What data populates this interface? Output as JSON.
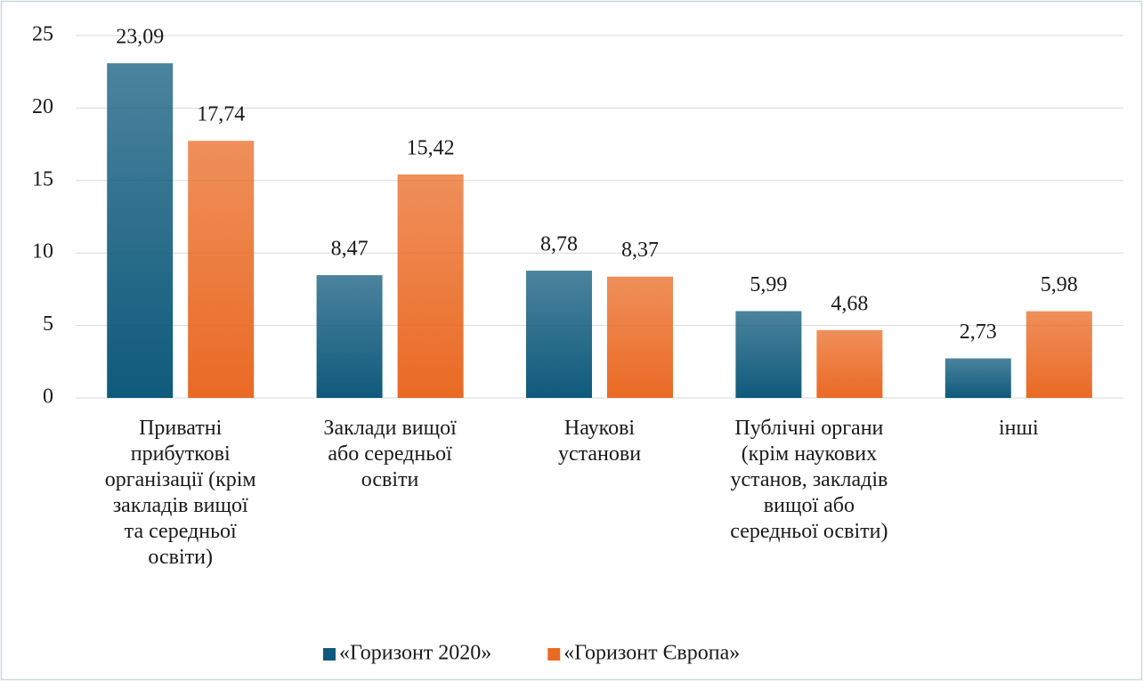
{
  "chart_data": {
    "type": "bar",
    "categories": [
      "Приватні\nприбуткові\nорганізації (крім\nзакладів вищої\nта середньої\nосвіти)",
      "Заклади вищої\nабо середньої\nосвіти",
      "Наукові\nустанови",
      "Публічні органи\n(крім наукових\nустанов, закладів\nвищої або\nсередньої освіти)",
      "інші"
    ],
    "series": [
      {
        "name": "«Горизонт 2020»",
        "color": "#0f5a7c",
        "values": [
          23.09,
          8.47,
          8.78,
          5.99,
          2.73
        ],
        "value_labels": [
          "23,09",
          "8,47",
          "8,78",
          "5,99",
          "2,73"
        ]
      },
      {
        "name": "«Горизонт Європа»",
        "color": "#ea6a24",
        "values": [
          17.74,
          15.42,
          8.37,
          4.68,
          5.98
        ],
        "value_labels": [
          "17,74",
          "15,42",
          "8,37",
          "4,68",
          "5,98"
        ]
      }
    ],
    "ylim": [
      0,
      25
    ],
    "yticks": [
      0,
      5,
      10,
      15,
      20,
      25
    ],
    "grid": true,
    "legend": "bottom"
  }
}
